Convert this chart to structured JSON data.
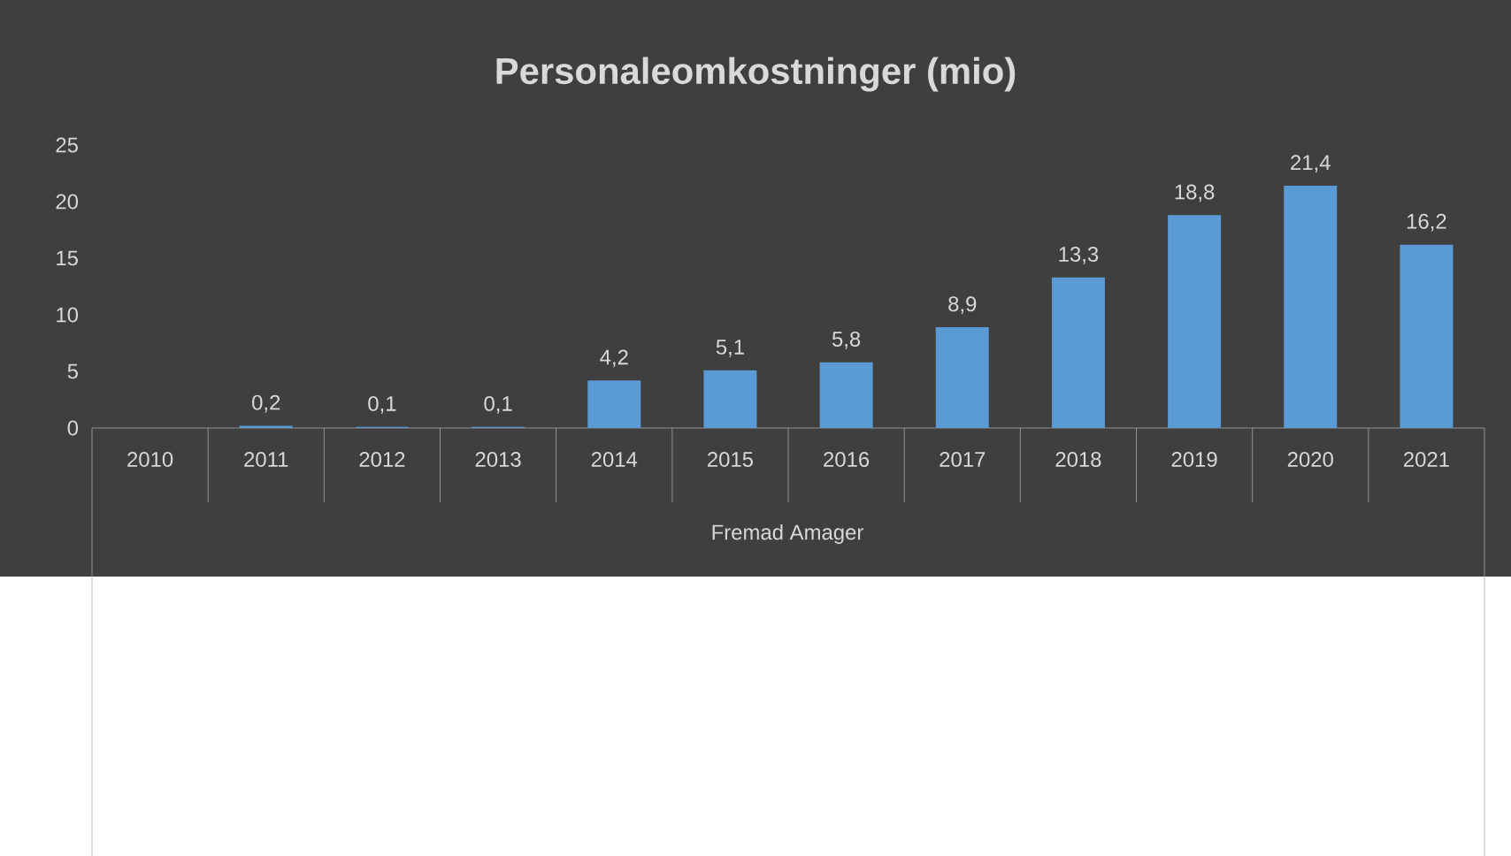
{
  "chart_data": {
    "type": "bar",
    "title": "Personaleomkostninger (mio)",
    "xlabel": "Fremad Amager",
    "categories": [
      "2010",
      "2011",
      "2012",
      "2013",
      "2014",
      "2015",
      "2016",
      "2017",
      "2018",
      "2019",
      "2020",
      "2021"
    ],
    "values": [
      null,
      0.2,
      0.1,
      0.1,
      4.2,
      5.1,
      5.8,
      8.9,
      13.3,
      18.8,
      21.4,
      16.2
    ],
    "value_labels": [
      null,
      "0,2",
      "0,1",
      "0,1",
      "4,2",
      "5,1",
      "5,8",
      "8,9",
      "13,3",
      "18,8",
      "21,4",
      "16,2"
    ],
    "color": "#5b9bd5",
    "ylim": [
      0,
      25
    ],
    "yticks": [
      0,
      5,
      10,
      15,
      20,
      25
    ],
    "grid": false
  }
}
